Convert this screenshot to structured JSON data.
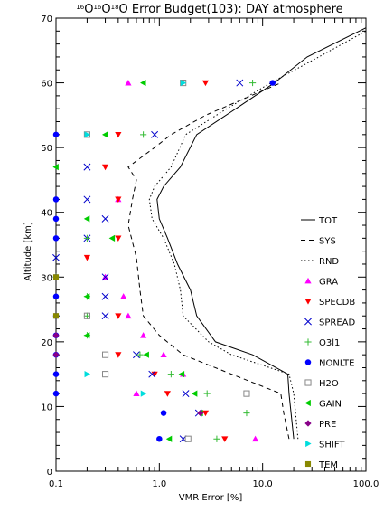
{
  "chart_data": {
    "type": "scatter",
    "title_iso": [
      "16",
      "O",
      "16",
      "O",
      "18",
      "O"
    ],
    "title_rest": " Error Budget(103): DAY atmosphere",
    "xlabel": "VMR Error [%]",
    "ylabel": "Altitude [km]",
    "xscale": "log",
    "xlim": [
      0.1,
      100
    ],
    "ylim": [
      0,
      70
    ],
    "xticks": [
      "0.1",
      "1.0",
      "10.0",
      "100.0"
    ],
    "yticks": [
      "0",
      "10",
      "20",
      "30",
      "40",
      "50",
      "60",
      "70"
    ],
    "legend_position": "right",
    "lines": [
      {
        "name": "TOT",
        "dash": "solid",
        "points": [
          [
            20,
            5
          ],
          [
            18,
            12
          ],
          [
            17.5,
            15
          ],
          [
            8,
            18
          ],
          [
            3.5,
            20
          ],
          [
            2.3,
            24
          ],
          [
            2,
            28
          ],
          [
            1.5,
            32
          ],
          [
            1.2,
            36
          ],
          [
            1.0,
            39
          ],
          [
            0.95,
            42
          ],
          [
            1.1,
            44
          ],
          [
            1.6,
            47
          ],
          [
            2.3,
            52
          ],
          [
            5.5,
            56
          ],
          [
            13,
            60
          ],
          [
            27,
            64
          ],
          [
            100,
            68.5
          ]
        ]
      },
      {
        "name": "SYS",
        "dash": "dashed",
        "points": [
          [
            18,
            5
          ],
          [
            16,
            9
          ],
          [
            15,
            12
          ],
          [
            5,
            15
          ],
          [
            1.7,
            18
          ],
          [
            1.0,
            21
          ],
          [
            0.7,
            24
          ],
          [
            0.65,
            28
          ],
          [
            0.6,
            33
          ],
          [
            0.5,
            38
          ],
          [
            0.55,
            42
          ],
          [
            0.6,
            45
          ],
          [
            0.5,
            47
          ],
          [
            0.9,
            50
          ],
          [
            1.3,
            52
          ],
          [
            2.8,
            55
          ],
          [
            6.5,
            57.5
          ],
          [
            15,
            60
          ]
        ]
      },
      {
        "name": "RND",
        "dash": "dotted",
        "points": [
          [
            22,
            5
          ],
          [
            20,
            12
          ],
          [
            18,
            15
          ],
          [
            5,
            18
          ],
          [
            3,
            20
          ],
          [
            1.7,
            24
          ],
          [
            1.6,
            28
          ],
          [
            1.4,
            32
          ],
          [
            1.1,
            36
          ],
          [
            0.85,
            39
          ],
          [
            0.8,
            42
          ],
          [
            0.9,
            44
          ],
          [
            1.3,
            47
          ],
          [
            1.8,
            52
          ],
          [
            4.5,
            56
          ],
          [
            12,
            60
          ],
          [
            35,
            64
          ],
          [
            100,
            68
          ]
        ]
      }
    ],
    "markers": [
      {
        "name": "GRA",
        "shape": "tri-up",
        "color": "#ff00ff",
        "points": [
          [
            8.5,
            5
          ],
          [
            0.6,
            12
          ],
          [
            1.7,
            15
          ],
          [
            0.7,
            21
          ],
          [
            1.1,
            18
          ],
          [
            0.5,
            24
          ],
          [
            0.45,
            27
          ],
          [
            0.3,
            30
          ],
          [
            0.4,
            42
          ],
          [
            0.5,
            60
          ]
        ]
      },
      {
        "name": "SPECDB",
        "shape": "tri-down",
        "color": "#ff0000",
        "points": [
          [
            4.3,
            5
          ],
          [
            2.8,
            9
          ],
          [
            1.2,
            12
          ],
          [
            0.9,
            15
          ],
          [
            0.4,
            18
          ],
          [
            0.4,
            24
          ],
          [
            0.4,
            36
          ],
          [
            0.4,
            42
          ],
          [
            0.3,
            47
          ],
          [
            0.4,
            52
          ],
          [
            2.8,
            60
          ],
          [
            0.2,
            33
          ]
        ]
      },
      {
        "name": "SPREAD",
        "shape": "x",
        "color": "#0000cc",
        "points": [
          [
            1.7,
            5
          ],
          [
            2.4,
            9
          ],
          [
            1.8,
            12
          ],
          [
            0.85,
            15
          ],
          [
            0.6,
            18
          ],
          [
            0.3,
            24
          ],
          [
            0.3,
            27
          ],
          [
            0.3,
            30
          ],
          [
            0.3,
            39
          ],
          [
            0.2,
            42
          ],
          [
            0.2,
            47
          ],
          [
            0.9,
            52
          ],
          [
            6,
            60
          ],
          [
            0.1,
            33
          ],
          [
            0.2,
            36
          ]
        ]
      },
      {
        "name": "O3l1",
        "shape": "plus",
        "color": "#33bb33",
        "points": [
          [
            3.6,
            5
          ],
          [
            7,
            9
          ],
          [
            2.9,
            12
          ],
          [
            1.3,
            15
          ],
          [
            0.65,
            18
          ],
          [
            0.2,
            21
          ],
          [
            0.2,
            27
          ],
          [
            0.7,
            52
          ],
          [
            8,
            60
          ],
          [
            0.2,
            36
          ],
          [
            0.1,
            30
          ],
          [
            0.2,
            24
          ]
        ]
      },
      {
        "name": "NONLTE",
        "shape": "circle",
        "color": "#0000ff",
        "points": [
          [
            1.0,
            5
          ],
          [
            1.1,
            9
          ],
          [
            0.1,
            12
          ],
          [
            0.1,
            15
          ],
          [
            0.1,
            18
          ],
          [
            0.1,
            21
          ],
          [
            0.1,
            24
          ],
          [
            0.1,
            27
          ],
          [
            0.1,
            30
          ],
          [
            0.1,
            36
          ],
          [
            0.1,
            39
          ],
          [
            0.1,
            42
          ],
          [
            0.1,
            52
          ],
          [
            12.5,
            60
          ]
        ]
      },
      {
        "name": "H2O",
        "shape": "square",
        "color": "#888888",
        "points": [
          [
            1.9,
            5
          ],
          [
            7,
            12
          ],
          [
            0.3,
            15
          ],
          [
            0.3,
            18
          ],
          [
            0.2,
            24
          ],
          [
            0.2,
            52
          ],
          [
            1.7,
            60
          ]
        ]
      },
      {
        "name": "GAIN",
        "shape": "tri-left",
        "color": "#00cc00",
        "points": [
          [
            1.25,
            5
          ],
          [
            2.5,
            9
          ],
          [
            2.2,
            12
          ],
          [
            1.65,
            15
          ],
          [
            0.75,
            18
          ],
          [
            0.2,
            21
          ],
          [
            0.2,
            27
          ],
          [
            0.35,
            36
          ],
          [
            0.3,
            52
          ],
          [
            0.7,
            60
          ],
          [
            0.1,
            47
          ],
          [
            0.2,
            39
          ]
        ]
      },
      {
        "name": "PRE",
        "shape": "diamond",
        "color": "#880088",
        "points": [
          [
            2.5,
            9
          ],
          [
            0.1,
            21
          ],
          [
            0.1,
            18
          ]
        ]
      },
      {
        "name": "SHIFT",
        "shape": "tri-right",
        "color": "#00dddd",
        "points": [
          [
            0.7,
            12
          ],
          [
            0.2,
            15
          ],
          [
            0.2,
            52
          ],
          [
            1.7,
            60
          ]
        ]
      },
      {
        "name": "TEM",
        "shape": "square-filled",
        "color": "#888800",
        "points": [
          [
            0.1,
            24
          ],
          [
            0.1,
            30
          ]
        ]
      }
    ]
  }
}
